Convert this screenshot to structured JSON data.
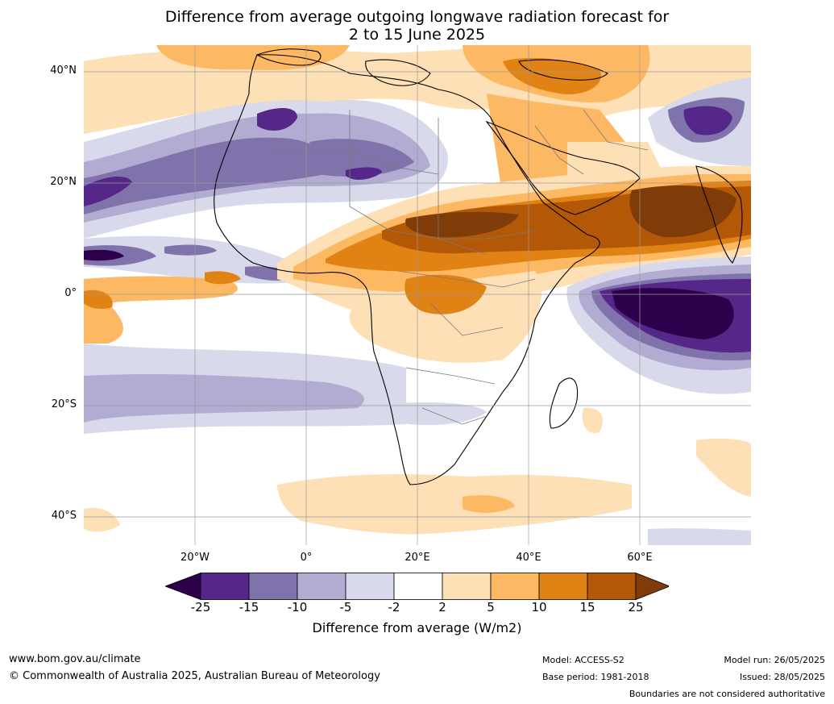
{
  "title": {
    "line1": "Difference from average outgoing longwave radiation forecast for",
    "line2": "2 to 15 June 2025"
  },
  "map": {
    "lat_labels": [
      "40°N",
      "20°N",
      "0°",
      "20°S",
      "40°S"
    ],
    "lon_labels": [
      "20°W",
      "0°",
      "20°E",
      "40°E",
      "60°E"
    ],
    "lat_values": [
      40,
      20,
      0,
      -20,
      -40
    ],
    "lon_values": [
      -20,
      0,
      20,
      40,
      60
    ],
    "extent": {
      "lon": [
        -40,
        80
      ],
      "lat": [
        -45,
        45
      ]
    },
    "gridlines": true
  },
  "colorbar": {
    "ticks": [
      "-25",
      "-15",
      "-10",
      "-5",
      "-2",
      "2",
      "5",
      "10",
      "15",
      "25"
    ],
    "colors": [
      "#2d004b",
      "#542788",
      "#8073ac",
      "#b2abd2",
      "#d8daeb",
      "#ffffff",
      "#fee0b6",
      "#fdb863",
      "#e08214",
      "#b35806",
      "#7f3b08"
    ],
    "label": "Difference from average (W/m2)"
  },
  "footer": {
    "website": "www.bom.gov.au/climate",
    "copyright": "© Commonwealth of Australia 2025, Australian Bureau of Meteorology",
    "model": "Model: ACCESS-S2",
    "base_period": "Base period: 1981-2018",
    "model_run": "Model run: 26/05/2025",
    "issued": "Issued: 28/05/2025",
    "disclaimer": "Boundaries are not considered authoritative"
  }
}
